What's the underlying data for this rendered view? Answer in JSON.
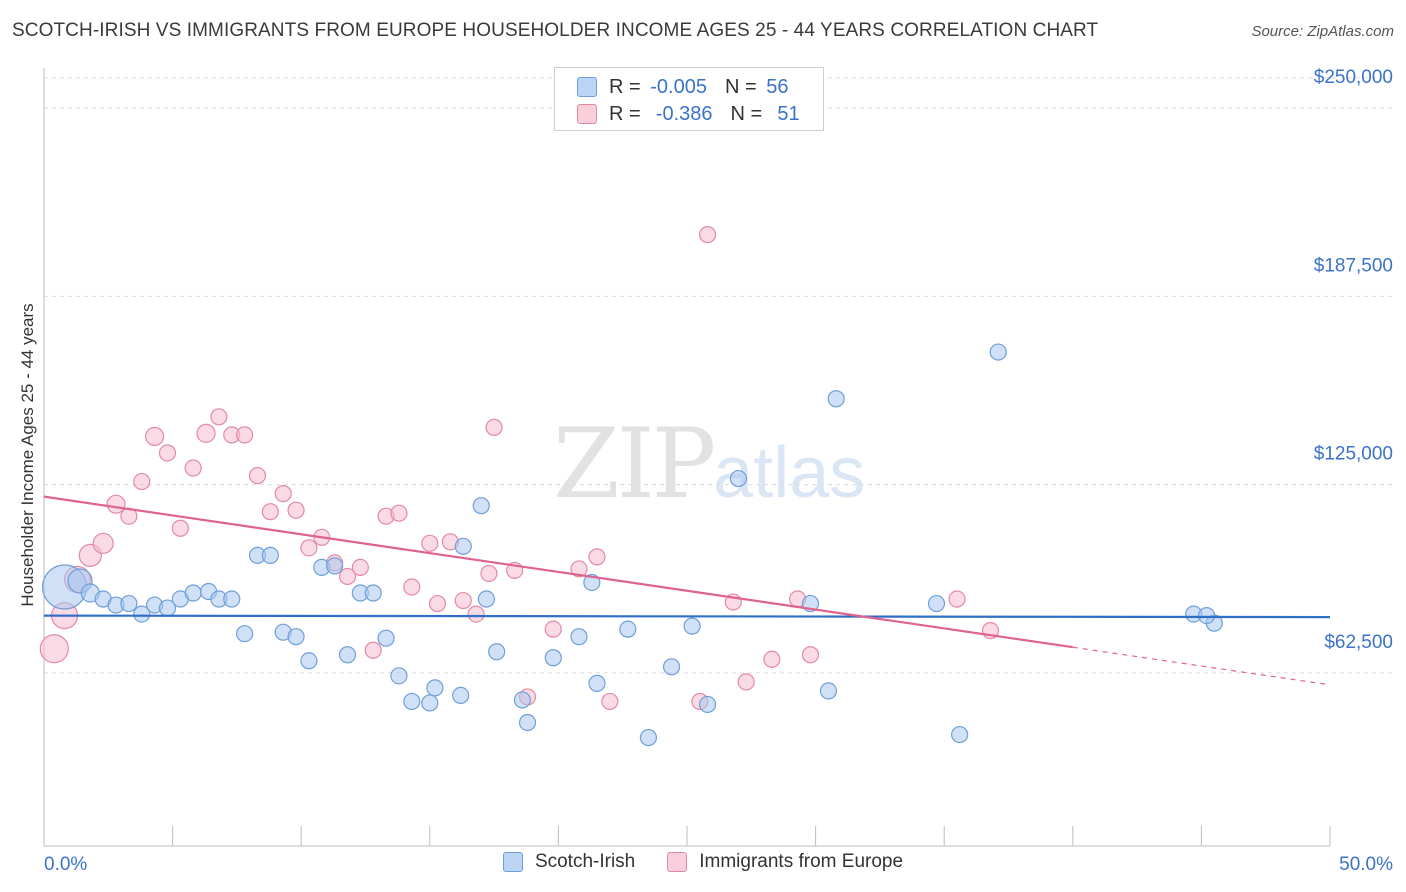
{
  "header": {
    "title": "SCOTCH-IRISH VS IMMIGRANTS FROM EUROPE HOUSEHOLDER INCOME AGES 25 - 44 YEARS CORRELATION CHART",
    "source": "Source: ZipAtlas.com"
  },
  "watermark": {
    "zip": "ZIP",
    "atlas": "atlas"
  },
  "legend": {
    "rows": [
      {
        "r_label": "R = ",
        "r_value": "-0.005",
        "n_label": "N = ",
        "n_value": "56"
      },
      {
        "r_label": "R = ",
        "r_value": " -0.386",
        "n_label": "N = ",
        "n_value": " 51"
      }
    ]
  },
  "bottom_legend": {
    "items": [
      "Scotch-Irish",
      "Immigrants from Europe"
    ]
  },
  "colors": {
    "blue_fill": "#a9c8f0",
    "blue_stroke": "#6f9fd8",
    "blue_line": "#2f6fc7",
    "pink_fill": "#f6bccd",
    "pink_stroke": "#e28aa6",
    "pink_line": "#e0628f",
    "axis_label": "#3a73c9",
    "grid": "#dcdcdc"
  },
  "chart_data": {
    "type": "scatter",
    "title": "SCOTCH-IRISH VS IMMIGRANTS FROM EUROPE HOUSEHOLDER INCOME AGES 25 - 44 YEARS CORRELATION CHART",
    "ylabel": "Householder Income Ages 25 - 44 years",
    "xlabel": "",
    "xlim": [
      0,
      50
    ],
    "ylim": [
      5000,
      260000
    ],
    "x_tick_labels": [
      "0.0%",
      "50.0%"
    ],
    "y_ticks": [
      62500,
      125000,
      187500,
      250000
    ],
    "y_tick_labels": [
      "$62,500",
      "$125,000",
      "$187,500",
      "$250,000"
    ],
    "grid": true,
    "legend_position": "top-center",
    "series": [
      {
        "name": "Scotch-Irish",
        "color": "#6f9fd8",
        "r": "-0.005",
        "n": "56",
        "trend": {
          "x": [
            0,
            50
          ],
          "y": [
            81500,
            81000
          ]
        },
        "points": [
          {
            "x": 0.8,
            "y": 91000,
            "s": 22
          },
          {
            "x": 1.4,
            "y": 93000,
            "s": 12
          },
          {
            "x": 1.8,
            "y": 89000,
            "s": 9
          },
          {
            "x": 2.3,
            "y": 87000,
            "s": 8
          },
          {
            "x": 2.8,
            "y": 85000,
            "s": 8
          },
          {
            "x": 3.3,
            "y": 85500,
            "s": 8
          },
          {
            "x": 3.8,
            "y": 82000,
            "s": 8
          },
          {
            "x": 4.3,
            "y": 85000,
            "s": 8
          },
          {
            "x": 4.8,
            "y": 84000,
            "s": 8
          },
          {
            "x": 5.3,
            "y": 87000,
            "s": 8
          },
          {
            "x": 5.8,
            "y": 89000,
            "s": 8
          },
          {
            "x": 6.4,
            "y": 89500,
            "s": 8
          },
          {
            "x": 6.8,
            "y": 87000,
            "s": 8
          },
          {
            "x": 7.3,
            "y": 87000,
            "s": 8
          },
          {
            "x": 7.8,
            "y": 75500,
            "s": 8
          },
          {
            "x": 8.3,
            "y": 101500,
            "s": 8
          },
          {
            "x": 8.8,
            "y": 101500,
            "s": 8
          },
          {
            "x": 9.3,
            "y": 76000,
            "s": 8
          },
          {
            "x": 9.8,
            "y": 74500,
            "s": 8
          },
          {
            "x": 10.3,
            "y": 66500,
            "s": 8
          },
          {
            "x": 10.8,
            "y": 97500,
            "s": 8
          },
          {
            "x": 11.3,
            "y": 98000,
            "s": 8
          },
          {
            "x": 11.8,
            "y": 68500,
            "s": 8
          },
          {
            "x": 12.3,
            "y": 89000,
            "s": 8
          },
          {
            "x": 12.8,
            "y": 89000,
            "s": 8
          },
          {
            "x": 13.3,
            "y": 74000,
            "s": 8
          },
          {
            "x": 13.8,
            "y": 61500,
            "s": 8
          },
          {
            "x": 14.3,
            "y": 53000,
            "s": 8
          },
          {
            "x": 15.0,
            "y": 52500,
            "s": 8
          },
          {
            "x": 15.2,
            "y": 57500,
            "s": 8
          },
          {
            "x": 16.2,
            "y": 55000,
            "s": 8
          },
          {
            "x": 16.3,
            "y": 104500,
            "s": 8
          },
          {
            "x": 17.2,
            "y": 87000,
            "s": 8
          },
          {
            "x": 17.0,
            "y": 118000,
            "s": 8
          },
          {
            "x": 17.6,
            "y": 69500,
            "s": 8
          },
          {
            "x": 18.6,
            "y": 53500,
            "s": 8
          },
          {
            "x": 18.8,
            "y": 46000,
            "s": 8
          },
          {
            "x": 19.8,
            "y": 67500,
            "s": 8
          },
          {
            "x": 20.8,
            "y": 74500,
            "s": 8
          },
          {
            "x": 21.3,
            "y": 92500,
            "s": 8
          },
          {
            "x": 21.5,
            "y": 59000,
            "s": 8
          },
          {
            "x": 22.7,
            "y": 77000,
            "s": 8
          },
          {
            "x": 23.5,
            "y": 41000,
            "s": 8
          },
          {
            "x": 24.4,
            "y": 64500,
            "s": 8
          },
          {
            "x": 25.2,
            "y": 78000,
            "s": 8
          },
          {
            "x": 25.8,
            "y": 52000,
            "s": 8
          },
          {
            "x": 27.0,
            "y": 127000,
            "s": 8
          },
          {
            "x": 29.8,
            "y": 85500,
            "s": 8
          },
          {
            "x": 30.5,
            "y": 56500,
            "s": 8
          },
          {
            "x": 30.8,
            "y": 153500,
            "s": 8
          },
          {
            "x": 34.7,
            "y": 85500,
            "s": 8
          },
          {
            "x": 35.6,
            "y": 42000,
            "s": 8
          },
          {
            "x": 37.1,
            "y": 169000,
            "s": 8
          },
          {
            "x": 44.7,
            "y": 82000,
            "s": 8
          },
          {
            "x": 45.5,
            "y": 79000,
            "s": 8
          },
          {
            "x": 45.2,
            "y": 81500,
            "s": 8
          }
        ]
      },
      {
        "name": "Immigrants from Europe",
        "color": "#e28aa6",
        "r": "-0.386",
        "n": "51",
        "trend": {
          "x": [
            0,
            40
          ],
          "y": [
            121000,
            71000
          ],
          "dashed_to": {
            "x": 50,
            "y": 58500
          }
        },
        "points": [
          {
            "x": 0.4,
            "y": 70500,
            "s": 14
          },
          {
            "x": 0.8,
            "y": 81500,
            "s": 13
          },
          {
            "x": 1.3,
            "y": 93500,
            "s": 13
          },
          {
            "x": 1.8,
            "y": 101500,
            "s": 11
          },
          {
            "x": 2.3,
            "y": 105500,
            "s": 10
          },
          {
            "x": 2.8,
            "y": 118500,
            "s": 9
          },
          {
            "x": 3.3,
            "y": 114500,
            "s": 8
          },
          {
            "x": 3.8,
            "y": 126000,
            "s": 8
          },
          {
            "x": 4.3,
            "y": 141000,
            "s": 9
          },
          {
            "x": 4.8,
            "y": 135500,
            "s": 8
          },
          {
            "x": 5.3,
            "y": 110500,
            "s": 8
          },
          {
            "x": 5.8,
            "y": 130500,
            "s": 8
          },
          {
            "x": 6.3,
            "y": 142000,
            "s": 9
          },
          {
            "x": 6.8,
            "y": 147500,
            "s": 8
          },
          {
            "x": 7.3,
            "y": 141500,
            "s": 8
          },
          {
            "x": 7.8,
            "y": 141500,
            "s": 8
          },
          {
            "x": 8.3,
            "y": 128000,
            "s": 8
          },
          {
            "x": 8.8,
            "y": 116000,
            "s": 8
          },
          {
            "x": 9.3,
            "y": 122000,
            "s": 8
          },
          {
            "x": 9.8,
            "y": 116500,
            "s": 8
          },
          {
            "x": 10.3,
            "y": 104000,
            "s": 8
          },
          {
            "x": 10.8,
            "y": 107500,
            "s": 8
          },
          {
            "x": 11.3,
            "y": 99000,
            "s": 8
          },
          {
            "x": 11.8,
            "y": 94500,
            "s": 8
          },
          {
            "x": 12.3,
            "y": 97500,
            "s": 8
          },
          {
            "x": 12.8,
            "y": 70000,
            "s": 8
          },
          {
            "x": 13.3,
            "y": 114500,
            "s": 8
          },
          {
            "x": 13.8,
            "y": 115500,
            "s": 8
          },
          {
            "x": 14.3,
            "y": 91000,
            "s": 8
          },
          {
            "x": 15.0,
            "y": 105500,
            "s": 8
          },
          {
            "x": 15.3,
            "y": 85500,
            "s": 8
          },
          {
            "x": 15.8,
            "y": 106000,
            "s": 8
          },
          {
            "x": 16.3,
            "y": 86500,
            "s": 8
          },
          {
            "x": 16.8,
            "y": 82000,
            "s": 8
          },
          {
            "x": 17.3,
            "y": 95500,
            "s": 8
          },
          {
            "x": 17.5,
            "y": 144000,
            "s": 8
          },
          {
            "x": 18.3,
            "y": 96500,
            "s": 8
          },
          {
            "x": 18.8,
            "y": 54500,
            "s": 8
          },
          {
            "x": 19.8,
            "y": 77000,
            "s": 8
          },
          {
            "x": 20.8,
            "y": 97000,
            "s": 8
          },
          {
            "x": 21.5,
            "y": 101000,
            "s": 8
          },
          {
            "x": 22.0,
            "y": 53000,
            "s": 8
          },
          {
            "x": 25.5,
            "y": 53000,
            "s": 8
          },
          {
            "x": 25.8,
            "y": 208000,
            "s": 8
          },
          {
            "x": 26.8,
            "y": 86000,
            "s": 8
          },
          {
            "x": 27.3,
            "y": 59500,
            "s": 8
          },
          {
            "x": 28.3,
            "y": 67000,
            "s": 8
          },
          {
            "x": 29.3,
            "y": 87000,
            "s": 8
          },
          {
            "x": 29.8,
            "y": 68500,
            "s": 8
          },
          {
            "x": 35.5,
            "y": 87000,
            "s": 8
          },
          {
            "x": 36.8,
            "y": 76500,
            "s": 8
          }
        ]
      }
    ]
  }
}
